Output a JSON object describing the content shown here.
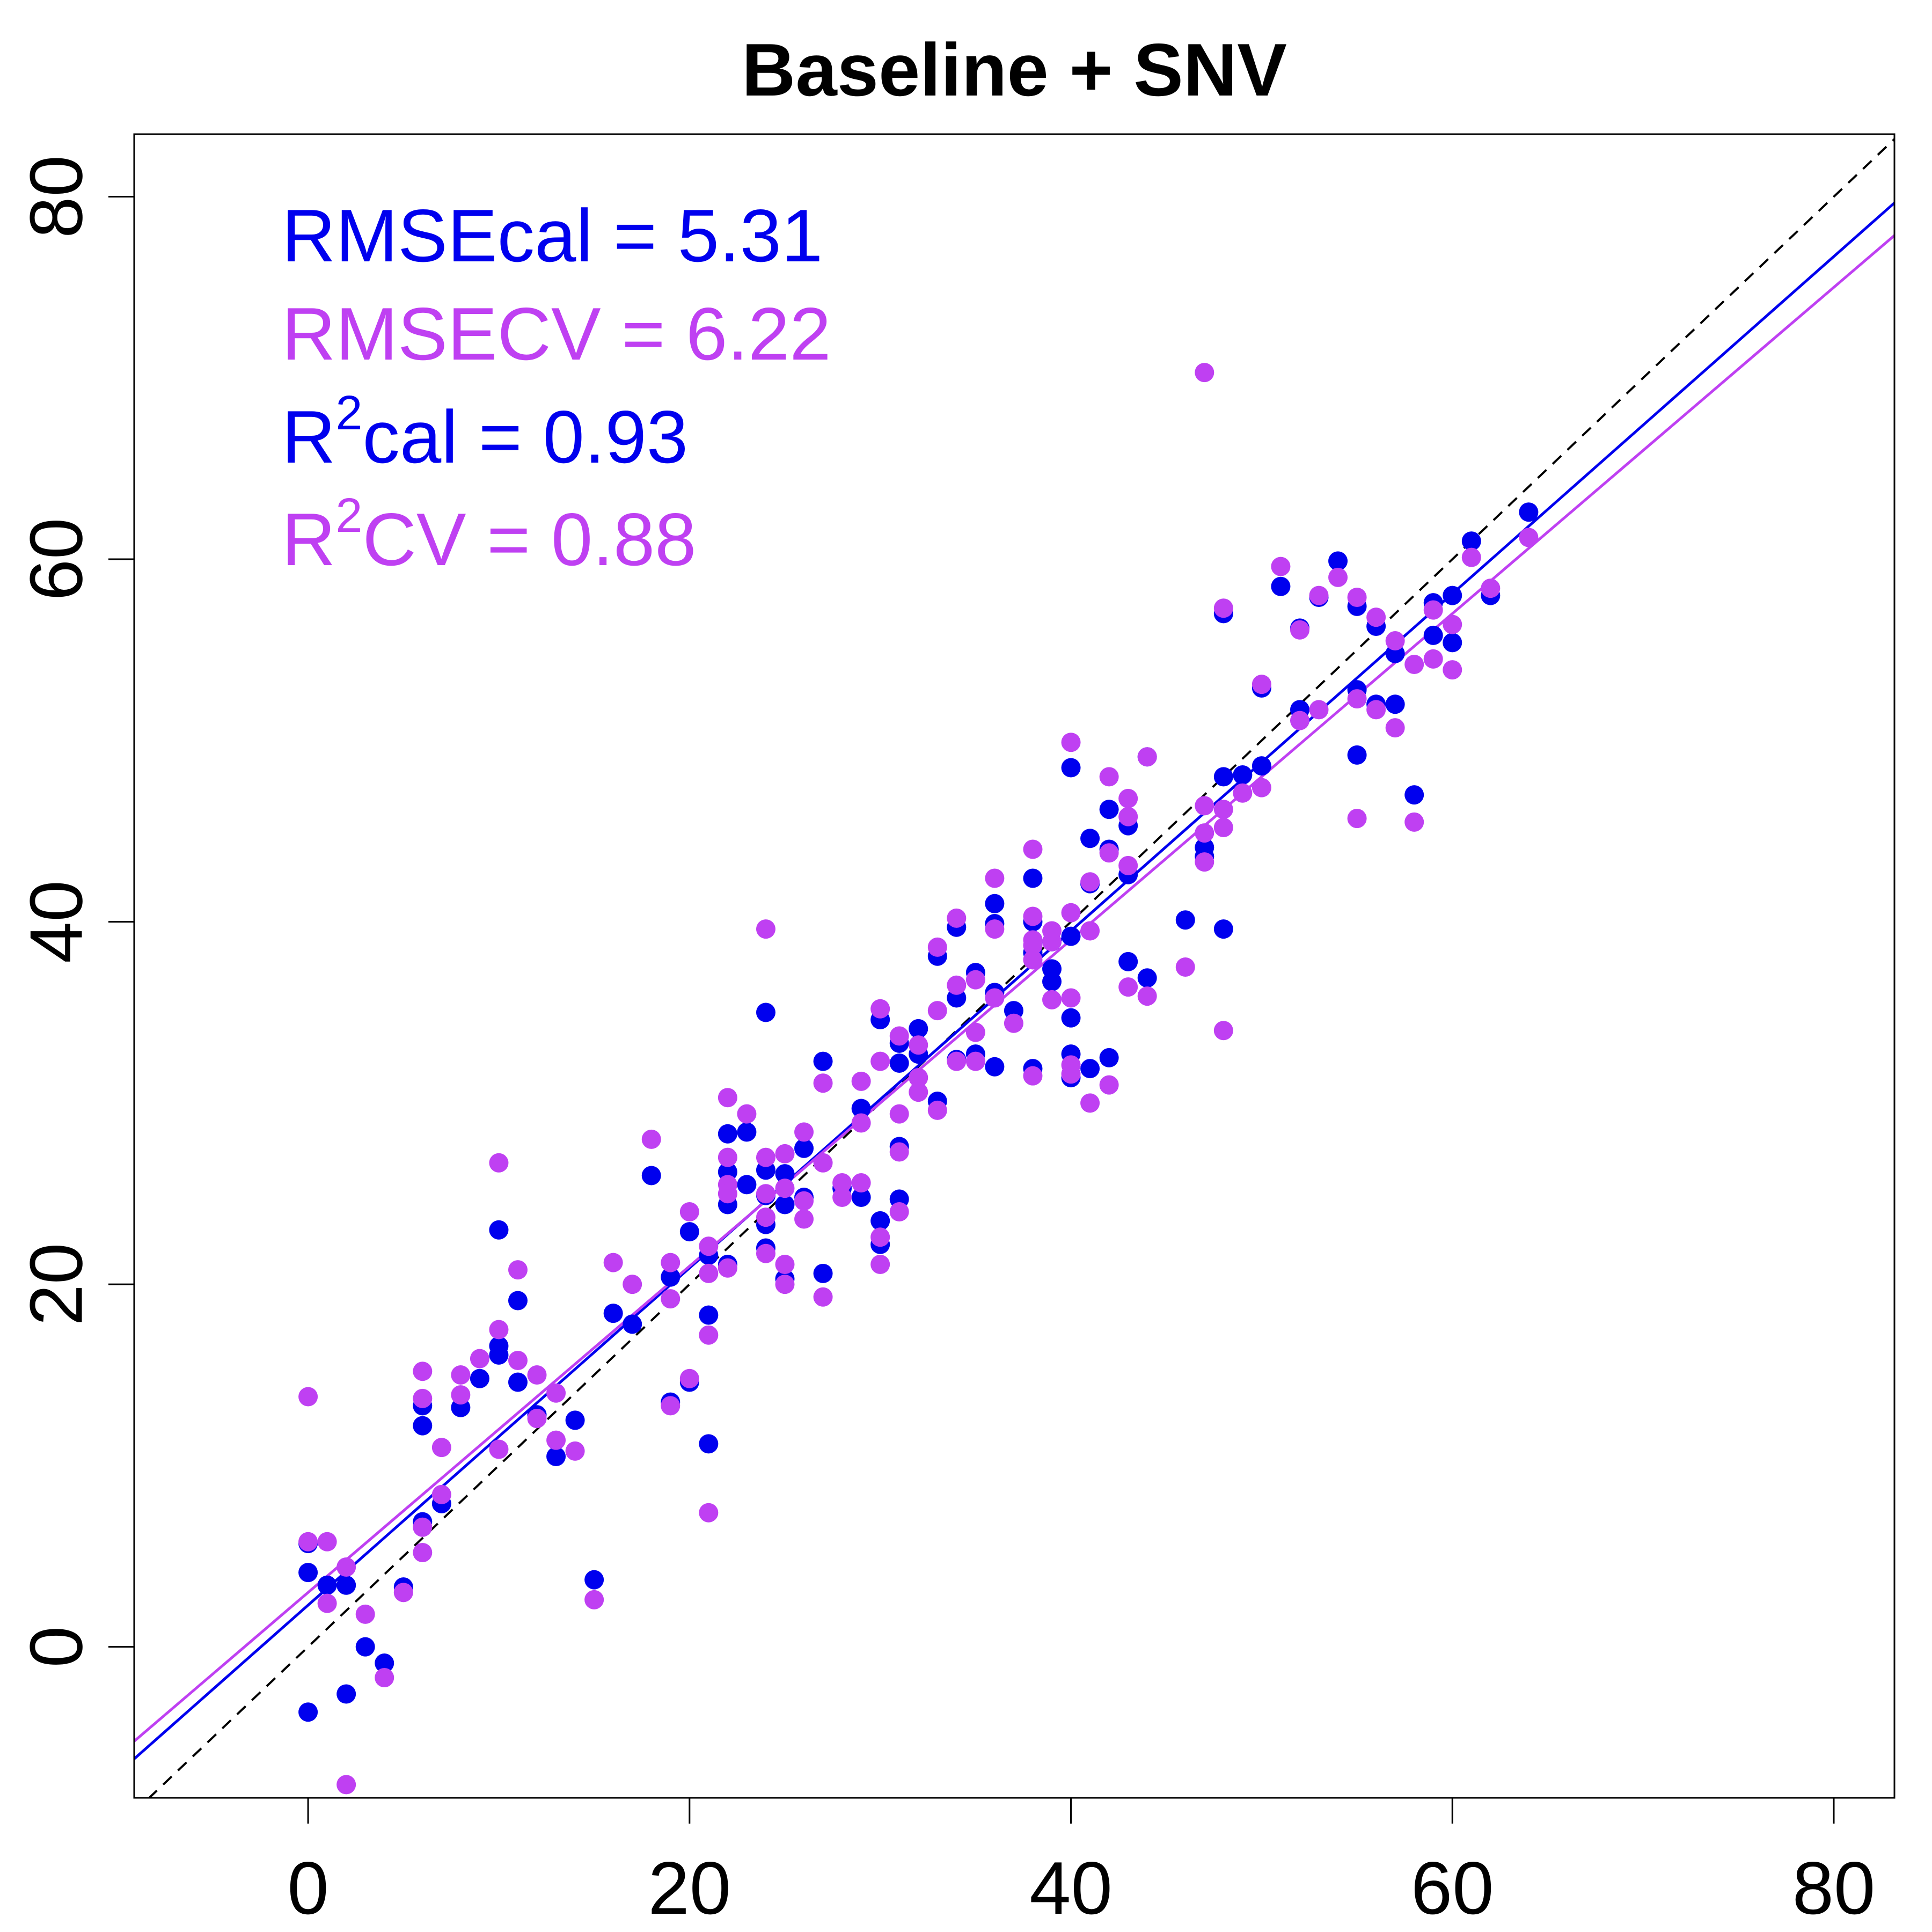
{
  "chart_data": {
    "type": "scatter",
    "title": "Baseline + SNV",
    "xlabel": "",
    "ylabel": "",
    "xlim": [
      -9.12,
      83.18
    ],
    "ylim": [
      -8.33,
      83.45
    ],
    "xticks": [
      "0",
      "20",
      "40",
      "60",
      "80"
    ],
    "yticks": [
      "0",
      "20",
      "40",
      "60",
      "80"
    ],
    "xtick_values": [
      0,
      20,
      40,
      60,
      80
    ],
    "ytick_values": [
      0,
      20,
      40,
      60,
      80
    ],
    "grid": false,
    "reference_line": {
      "style": "dashed",
      "color": "#000000",
      "slope": 1,
      "intercept": 0
    },
    "annotations": {
      "rmse_cal": "RMSEcal = 5.31",
      "rmse_cv": "RMSECV = 6.22",
      "r2_cal_base": "R",
      "r2_cal_sup": "2",
      "r2_cal_rest": "cal = 0.93",
      "r2_cv_base": "R",
      "r2_cv_sup": "2",
      "r2_cv_rest": "CV = 0.88"
    },
    "series": [
      {
        "key": "calibration",
        "color": "#0000ee",
        "fit": {
          "slope": 0.93,
          "intercept": 2.3
        },
        "points": [
          [
            0,
            -3.6
          ],
          [
            0,
            4.1
          ],
          [
            0,
            5.7
          ],
          [
            1,
            3.4
          ],
          [
            2,
            3.4
          ],
          [
            2,
            -2.6
          ],
          [
            3,
            0
          ],
          [
            4,
            -0.9
          ],
          [
            5,
            3.3
          ],
          [
            6,
            6.9
          ],
          [
            6,
            12.2
          ],
          [
            6,
            13.3
          ],
          [
            7,
            7.9
          ],
          [
            8,
            13.2
          ],
          [
            9,
            14.8
          ],
          [
            10,
            16.1
          ],
          [
            10,
            16.6
          ],
          [
            10,
            23
          ],
          [
            11,
            19.1
          ],
          [
            11,
            14.6
          ],
          [
            12,
            12.8
          ],
          [
            13,
            10.5
          ],
          [
            14,
            12.5
          ],
          [
            15,
            3.7
          ],
          [
            16,
            18.4
          ],
          [
            17,
            17.8
          ],
          [
            18,
            26
          ],
          [
            19,
            20.4
          ],
          [
            19,
            13.5
          ],
          [
            20,
            14.6
          ],
          [
            20,
            22.9
          ],
          [
            21,
            18.3
          ],
          [
            21,
            11.2
          ],
          [
            21,
            21.6
          ],
          [
            22,
            21.1
          ],
          [
            22,
            24.4
          ],
          [
            22,
            26.2
          ],
          [
            22,
            28.3
          ],
          [
            23,
            25.5
          ],
          [
            23,
            28.4
          ],
          [
            24,
            23.3
          ],
          [
            24,
            24.9
          ],
          [
            24,
            26.3
          ],
          [
            24,
            22
          ],
          [
            24,
            35
          ],
          [
            25,
            24.4
          ],
          [
            25,
            26.1
          ],
          [
            25,
            20.3
          ],
          [
            26,
            27.5
          ],
          [
            26,
            24.8
          ],
          [
            27,
            32.3
          ],
          [
            27,
            20.6
          ],
          [
            28,
            25.3
          ],
          [
            29,
            29.7
          ],
          [
            29,
            24.8
          ],
          [
            30,
            23.5
          ],
          [
            30,
            22.2
          ],
          [
            30,
            34.6
          ],
          [
            31,
            33.3
          ],
          [
            31,
            32.2
          ],
          [
            31,
            27.6
          ],
          [
            31,
            24.7
          ],
          [
            32,
            32.7
          ],
          [
            32,
            34.1
          ],
          [
            33,
            38.1
          ],
          [
            33,
            30.1
          ],
          [
            34,
            39.7
          ],
          [
            34,
            35.8
          ],
          [
            34,
            32.4
          ],
          [
            35,
            32.7
          ],
          [
            35,
            37.2
          ],
          [
            36,
            41
          ],
          [
            36,
            39.9
          ],
          [
            36,
            36.1
          ],
          [
            36,
            32
          ],
          [
            37,
            35.1
          ],
          [
            38,
            42.4
          ],
          [
            38,
            40
          ],
          [
            38,
            38.3
          ],
          [
            38,
            31.9
          ],
          [
            39,
            36.7
          ],
          [
            39,
            37.4
          ],
          [
            39,
            38.9
          ],
          [
            40,
            48.5
          ],
          [
            40,
            39.2
          ],
          [
            40,
            32.7
          ],
          [
            40,
            34.7
          ],
          [
            40,
            31.4
          ],
          [
            41,
            44.6
          ],
          [
            41,
            42.1
          ],
          [
            41,
            31.9
          ],
          [
            42,
            46.2
          ],
          [
            42,
            44
          ],
          [
            42,
            32.5
          ],
          [
            43,
            45.3
          ],
          [
            43,
            42.6
          ],
          [
            43,
            37.8
          ],
          [
            44,
            49.1
          ],
          [
            44,
            36.9
          ],
          [
            46,
            40.1
          ],
          [
            47,
            43.6
          ],
          [
            47,
            44.1
          ],
          [
            48,
            48
          ],
          [
            48,
            57
          ],
          [
            48,
            39.6
          ],
          [
            49,
            48.1
          ],
          [
            50,
            52.9
          ],
          [
            50,
            48.6
          ],
          [
            51,
            58.5
          ],
          [
            52,
            56.2
          ],
          [
            52,
            51.7
          ],
          [
            53,
            57.9
          ],
          [
            54,
            59.9
          ],
          [
            55,
            57.4
          ],
          [
            55,
            52.8
          ],
          [
            55,
            49.2
          ],
          [
            56,
            56.3
          ],
          [
            56,
            52
          ],
          [
            57,
            54.8
          ],
          [
            57,
            52
          ],
          [
            58,
            47
          ],
          [
            59,
            57.6
          ],
          [
            59,
            55.8
          ],
          [
            60,
            55.4
          ],
          [
            60,
            58
          ],
          [
            61,
            61
          ],
          [
            62,
            58
          ],
          [
            64,
            62.6
          ]
        ]
      },
      {
        "key": "cross-validation",
        "color": "#bf40f2",
        "fit": {
          "slope": 0.9,
          "intercept": 3.0
        },
        "points": [
          [
            0,
            13.8
          ],
          [
            0,
            5.8
          ],
          [
            1,
            5.8
          ],
          [
            1,
            2.4
          ],
          [
            2,
            4.4
          ],
          [
            2,
            -7.6
          ],
          [
            3,
            1.8
          ],
          [
            4,
            -1.7
          ],
          [
            5,
            3
          ],
          [
            6,
            15.2
          ],
          [
            6,
            13.7
          ],
          [
            6,
            6.6
          ],
          [
            6,
            5.2
          ],
          [
            7,
            11
          ],
          [
            7,
            8.4
          ],
          [
            8,
            15
          ],
          [
            8,
            13.9
          ],
          [
            9,
            15.9
          ],
          [
            10,
            26.7
          ],
          [
            10,
            17.5
          ],
          [
            10,
            10.9
          ],
          [
            11,
            20.8
          ],
          [
            11,
            15.8
          ],
          [
            12,
            15
          ],
          [
            12,
            12.6
          ],
          [
            13,
            14
          ],
          [
            13,
            11.4
          ],
          [
            14,
            10.8
          ],
          [
            15,
            2.6
          ],
          [
            16,
            21.2
          ],
          [
            17,
            20
          ],
          [
            18,
            28
          ],
          [
            19,
            21.2
          ],
          [
            19,
            19.2
          ],
          [
            19,
            13.3
          ],
          [
            20,
            24
          ],
          [
            20,
            14.8
          ],
          [
            21,
            22.1
          ],
          [
            21,
            20.6
          ],
          [
            21,
            17.2
          ],
          [
            21,
            7.4
          ],
          [
            22,
            30.3
          ],
          [
            22,
            27
          ],
          [
            22,
            25.5
          ],
          [
            22,
            25
          ],
          [
            22,
            20.9
          ],
          [
            23,
            29.4
          ],
          [
            24,
            39.6
          ],
          [
            24,
            27
          ],
          [
            24,
            25
          ],
          [
            24,
            23.7
          ],
          [
            24,
            21.7
          ],
          [
            25,
            27.2
          ],
          [
            25,
            25.3
          ],
          [
            25,
            21.1
          ],
          [
            25,
            20
          ],
          [
            26,
            28.4
          ],
          [
            26,
            24.6
          ],
          [
            26,
            23.6
          ],
          [
            27,
            31.1
          ],
          [
            27,
            26.7
          ],
          [
            27,
            19.3
          ],
          [
            28,
            25.6
          ],
          [
            28,
            24.8
          ],
          [
            29,
            31.2
          ],
          [
            29,
            28.9
          ],
          [
            29,
            25.6
          ],
          [
            30,
            35.2
          ],
          [
            30,
            32.3
          ],
          [
            30,
            22.6
          ],
          [
            30,
            21.1
          ],
          [
            31,
            33.7
          ],
          [
            31,
            29.4
          ],
          [
            31,
            24
          ],
          [
            31,
            27.3
          ],
          [
            32,
            33.2
          ],
          [
            32,
            31.4
          ],
          [
            32,
            30.6
          ],
          [
            33,
            35.1
          ],
          [
            33,
            38.6
          ],
          [
            33,
            29.6
          ],
          [
            34,
            40.2
          ],
          [
            34,
            36.5
          ],
          [
            34,
            32.3
          ],
          [
            35,
            36.8
          ],
          [
            35,
            33.9
          ],
          [
            35,
            32.3
          ],
          [
            36,
            42.4
          ],
          [
            36,
            39.6
          ],
          [
            36,
            35.8
          ],
          [
            37,
            34.4
          ],
          [
            38,
            44
          ],
          [
            38,
            40.3
          ],
          [
            38,
            39
          ],
          [
            38,
            38.7
          ],
          [
            38,
            37.9
          ],
          [
            38,
            31.5
          ],
          [
            39,
            39.5
          ],
          [
            39,
            38.9
          ],
          [
            39,
            35.7
          ],
          [
            40,
            49.9
          ],
          [
            40,
            40.5
          ],
          [
            40,
            35.8
          ],
          [
            40,
            32.1
          ],
          [
            40,
            31.6
          ],
          [
            41,
            42.2
          ],
          [
            41,
            39.5
          ],
          [
            41,
            30
          ],
          [
            42,
            48
          ],
          [
            42,
            43.8
          ],
          [
            42,
            31
          ],
          [
            43,
            46.8
          ],
          [
            43,
            45.8
          ],
          [
            43,
            43.1
          ],
          [
            43,
            36.4
          ],
          [
            44,
            49.1
          ],
          [
            44,
            35.9
          ],
          [
            46,
            37.5
          ],
          [
            47,
            70.3
          ],
          [
            47,
            46.4
          ],
          [
            47,
            44.9
          ],
          [
            47,
            43.3
          ],
          [
            48,
            57.3
          ],
          [
            48,
            46.2
          ],
          [
            48,
            45.2
          ],
          [
            48,
            34
          ],
          [
            49,
            47.1
          ],
          [
            50,
            53.1
          ],
          [
            50,
            47.4
          ],
          [
            51,
            59.6
          ],
          [
            52,
            56.1
          ],
          [
            52,
            51.1
          ],
          [
            53,
            58
          ],
          [
            53,
            51.7
          ],
          [
            54,
            59
          ],
          [
            55,
            57.9
          ],
          [
            55,
            52.3
          ],
          [
            55,
            45.7
          ],
          [
            56,
            56.8
          ],
          [
            56,
            51.7
          ],
          [
            57,
            55.5
          ],
          [
            57,
            50.7
          ],
          [
            58,
            54.2
          ],
          [
            58,
            45.5
          ],
          [
            59,
            57.2
          ],
          [
            59,
            54.5
          ],
          [
            60,
            56.4
          ],
          [
            60,
            53.9
          ],
          [
            61,
            60.1
          ],
          [
            62,
            58.4
          ],
          [
            64,
            61.2
          ]
        ]
      }
    ]
  }
}
